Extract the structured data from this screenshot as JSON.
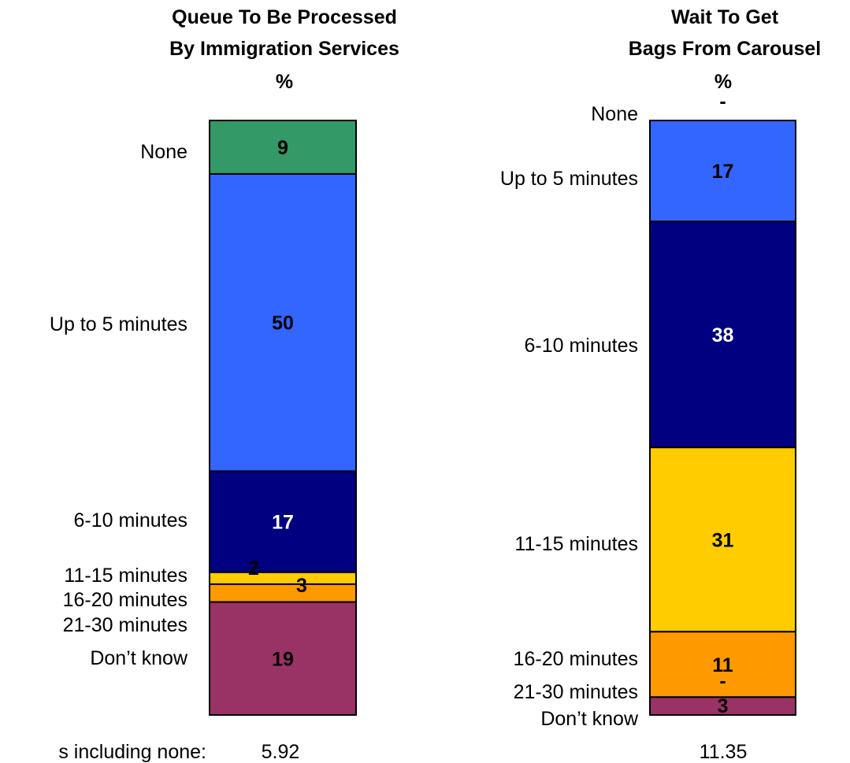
{
  "chart_data": [
    {
      "type": "bar",
      "stacked": true,
      "title": [
        "Queue To Be Processed",
        "By Immigration Services"
      ],
      "unit": "%",
      "categories": [
        "None",
        "Up to 5 minutes",
        "6-10 minutes",
        "11-15 minutes",
        "16-20 minutes",
        "21-30 minutes",
        "Don’t know"
      ],
      "values": [
        9,
        50,
        17,
        2,
        3,
        0,
        19
      ],
      "value_labels": [
        "9",
        "50",
        "17",
        "2",
        "3",
        "-",
        "19"
      ],
      "footer_value": "5.92"
    },
    {
      "type": "bar",
      "stacked": true,
      "title": [
        "Wait To Get",
        "Bags From Carousel"
      ],
      "unit": "%",
      "categories": [
        "None",
        "Up to 5 minutes",
        "6-10 minutes",
        "11-15 minutes",
        "16-20 minutes",
        "21-30 minutes",
        "Don’t know"
      ],
      "values": [
        0,
        17,
        38,
        31,
        11,
        0,
        3
      ],
      "value_labels": [
        "-",
        "17",
        "38",
        "31",
        "11",
        "-",
        "3"
      ],
      "footer_value": "11.35"
    }
  ],
  "footer_label": "s including none:",
  "colors": {
    "None": "#339966",
    "Up to 5 minutes": "#3366ff",
    "6-10 minutes": "#000080",
    "11-15 minutes": "#ffcc00",
    "16-20 minutes": "#ff9900",
    "21-30 minutes": "#ff6600",
    "Don’t know": "#993366"
  },
  "label_colors": {
    "None": "#000000",
    "Up to 5 minutes": "#000000",
    "6-10 minutes": "#ffffff",
    "11-15 minutes": "#000000",
    "16-20 minutes": "#000000",
    "21-30 minutes": "#000000",
    "Don’t know": "#000000"
  }
}
